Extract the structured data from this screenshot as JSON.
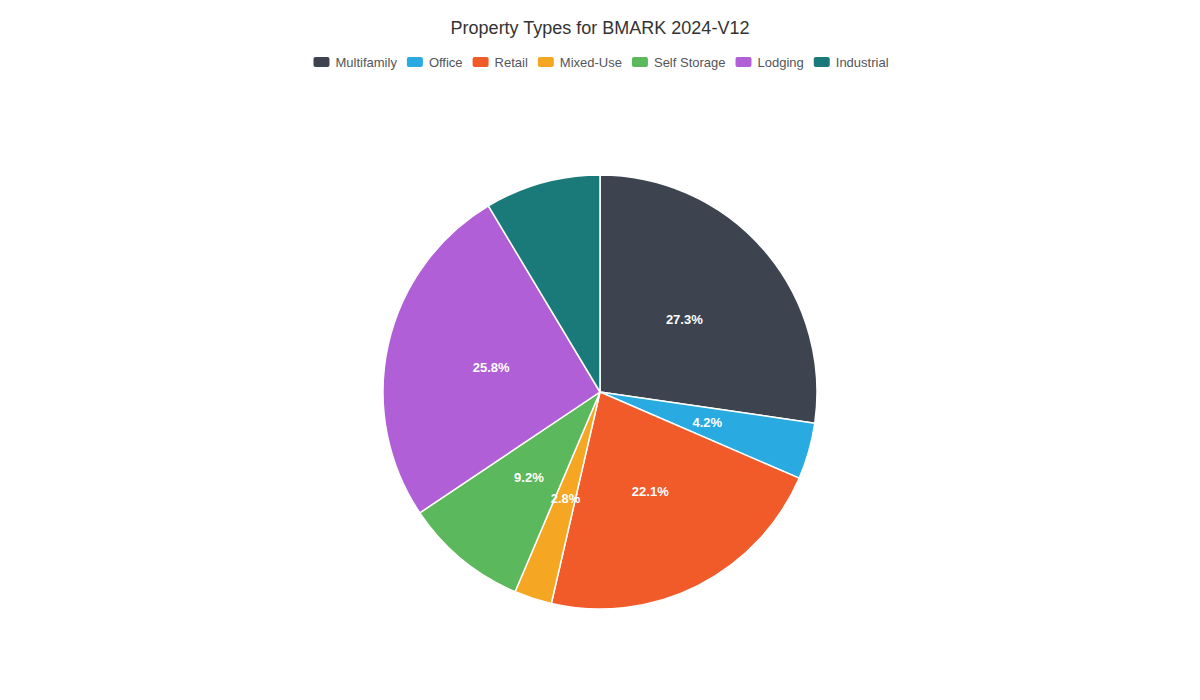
{
  "chart_data": {
    "type": "pie",
    "title": "Property Types for BMARK 2024-V12",
    "categories": [
      "Multifamily",
      "Office",
      "Retail",
      "Mixed-Use",
      "Self Storage",
      "Lodging",
      "Industrial"
    ],
    "values": [
      27.3,
      4.2,
      22.1,
      2.8,
      9.2,
      25.8,
      8.6
    ],
    "value_labels": [
      "27.3%",
      "4.2%",
      "22.1%",
      "2.8%",
      "9.2%",
      "25.8%",
      null
    ],
    "colors": [
      "#3d4450",
      "#29abe2",
      "#f15a29",
      "#f5a623",
      "#5cb85c",
      "#b05fd6",
      "#1a7a7a"
    ],
    "data_labels": true,
    "legend": "top"
  }
}
